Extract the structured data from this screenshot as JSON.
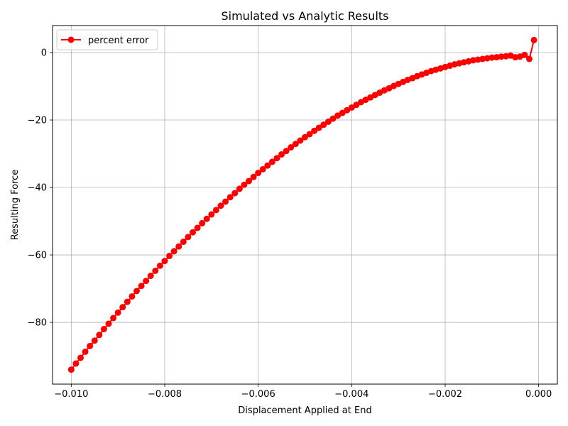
{
  "chart_data": {
    "type": "line",
    "title": "Simulated vs Analytic Results",
    "xlabel": "Displacement Applied at End",
    "ylabel": "Resulting Force",
    "xlim": [
      -0.0104,
      0.0004
    ],
    "ylim": [
      -98.3,
      8.0
    ],
    "xticks": [
      -0.01,
      -0.008,
      -0.006,
      -0.004,
      -0.002,
      0.0
    ],
    "xtick_labels": [
      "−0.010",
      "−0.008",
      "−0.006",
      "−0.004",
      "−0.002",
      "0.000"
    ],
    "yticks": [
      0,
      -20,
      -40,
      -60,
      -80
    ],
    "ytick_labels": [
      "0",
      "−20",
      "−40",
      "−60",
      "−80"
    ],
    "grid": true,
    "legend_position": "top-left",
    "colors": {
      "series": "#ff0000",
      "grid": "#b0b0b0",
      "axis": "#000000"
    },
    "series": [
      {
        "name": "percent error",
        "marker": "circle",
        "x": [
          -0.01,
          -0.0099,
          -0.0098,
          -0.0097,
          -0.0096,
          -0.0095,
          -0.0094,
          -0.0093,
          -0.0092,
          -0.0091,
          -0.009,
          -0.0089,
          -0.0088,
          -0.0087,
          -0.0086,
          -0.0085,
          -0.0084,
          -0.0083,
          -0.0082,
          -0.0081,
          -0.008,
          -0.0079,
          -0.0078,
          -0.0077,
          -0.0076,
          -0.0075,
          -0.0074,
          -0.0073,
          -0.0072,
          -0.0071,
          -0.007,
          -0.0069,
          -0.0068,
          -0.0067,
          -0.0066,
          -0.0065,
          -0.0064,
          -0.0063,
          -0.0062,
          -0.0061,
          -0.006,
          -0.0059,
          -0.0058,
          -0.0057,
          -0.0056,
          -0.0055,
          -0.0054,
          -0.0053,
          -0.0052,
          -0.0051,
          -0.005,
          -0.0049,
          -0.0048,
          -0.0047,
          -0.0046,
          -0.0045,
          -0.0044,
          -0.0043,
          -0.0042,
          -0.0041,
          -0.004,
          -0.0039,
          -0.0038,
          -0.0037,
          -0.0036,
          -0.0035,
          -0.0034,
          -0.0033,
          -0.0032,
          -0.0031,
          -0.003,
          -0.0029,
          -0.0028,
          -0.0027,
          -0.0026,
          -0.0025,
          -0.0024,
          -0.0023,
          -0.0022,
          -0.0021,
          -0.002,
          -0.0019,
          -0.0018,
          -0.0017,
          -0.0016,
          -0.0015,
          -0.0014,
          -0.0013,
          -0.0012,
          -0.0011,
          -0.001,
          -0.0009,
          -0.0008,
          -0.0007,
          -0.0006,
          -0.0005,
          -0.0004,
          -0.0003,
          -0.0002,
          -0.0001
        ],
        "y": [
          -94.0,
          -92.2,
          -90.5,
          -88.7,
          -87.0,
          -85.4,
          -83.7,
          -82.0,
          -80.4,
          -78.7,
          -77.1,
          -75.5,
          -73.9,
          -72.3,
          -70.7,
          -69.2,
          -67.7,
          -66.2,
          -64.7,
          -63.2,
          -61.8,
          -60.3,
          -58.9,
          -57.5,
          -56.1,
          -54.7,
          -53.3,
          -52.0,
          -50.6,
          -49.3,
          -48.0,
          -46.7,
          -45.4,
          -44.2,
          -42.9,
          -41.7,
          -40.4,
          -39.2,
          -38.1,
          -36.9,
          -35.7,
          -34.6,
          -33.5,
          -32.4,
          -31.3,
          -30.2,
          -29.2,
          -28.1,
          -27.1,
          -26.1,
          -25.1,
          -24.2,
          -23.2,
          -22.3,
          -21.4,
          -20.5,
          -19.6,
          -18.7,
          -17.9,
          -17.1,
          -16.3,
          -15.5,
          -14.7,
          -14.0,
          -13.3,
          -12.6,
          -11.9,
          -11.2,
          -10.6,
          -9.9,
          -9.3,
          -8.7,
          -8.1,
          -7.6,
          -7.0,
          -6.5,
          -6.0,
          -5.5,
          -5.1,
          -4.7,
          -4.3,
          -3.9,
          -3.5,
          -3.2,
          -2.9,
          -2.6,
          -2.3,
          -2.1,
          -1.9,
          -1.7,
          -1.5,
          -1.4,
          -1.2,
          -1.1,
          -0.9,
          -1.4,
          -1.2,
          -0.7,
          -1.9,
          3.7
        ]
      }
    ]
  }
}
